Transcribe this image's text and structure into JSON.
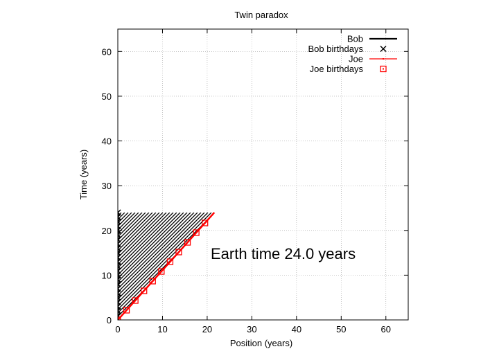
{
  "chart_data": {
    "type": "line",
    "title": "Twin paradox",
    "xlabel": "Position (years)",
    "ylabel": "Time (years)",
    "xlim": [
      0,
      65
    ],
    "ylim": [
      0,
      65
    ],
    "x_ticks": [
      0,
      10,
      20,
      30,
      40,
      50,
      60
    ],
    "y_ticks": [
      0,
      10,
      20,
      30,
      40,
      50,
      60
    ],
    "grid": true,
    "legend_position": "top-right",
    "annotation": "Earth time 24.0 years",
    "series": [
      {
        "name": "Bob",
        "color": "#000000",
        "x": [
          0,
          0
        ],
        "y": [
          0,
          24.0
        ]
      },
      {
        "name": "Bob birthdays",
        "color": "#000000",
        "marker": "x",
        "x": [
          0,
          0,
          0,
          0,
          0,
          0,
          0,
          0,
          0,
          0,
          0,
          0,
          0,
          0,
          0,
          0,
          0,
          0,
          0,
          0,
          0,
          0,
          0,
          0,
          0
        ],
        "y": [
          0,
          1,
          2,
          3,
          4,
          5,
          6,
          7,
          8,
          9,
          10,
          11,
          12,
          13,
          14,
          15,
          16,
          17,
          18,
          19,
          20,
          21,
          22,
          23,
          24
        ]
      },
      {
        "name": "Joe",
        "color": "#ff0000",
        "x": [
          0,
          21.6
        ],
        "y": [
          0,
          24.0
        ]
      },
      {
        "name": "Joe birthdays",
        "color": "#ff0000",
        "marker": "square",
        "x": [
          0,
          1.95,
          3.9,
          5.85,
          7.8,
          9.75,
          11.7,
          13.65,
          15.6,
          17.55,
          19.5
        ],
        "y": [
          0,
          2.17,
          4.33,
          6.5,
          8.67,
          10.83,
          13.0,
          15.17,
          17.33,
          19.5,
          21.67
        ]
      }
    ],
    "hatched_region": {
      "color": "#000000",
      "x": [
        0,
        21.6,
        0
      ],
      "y": [
        0,
        24.0,
        24.0
      ]
    }
  }
}
